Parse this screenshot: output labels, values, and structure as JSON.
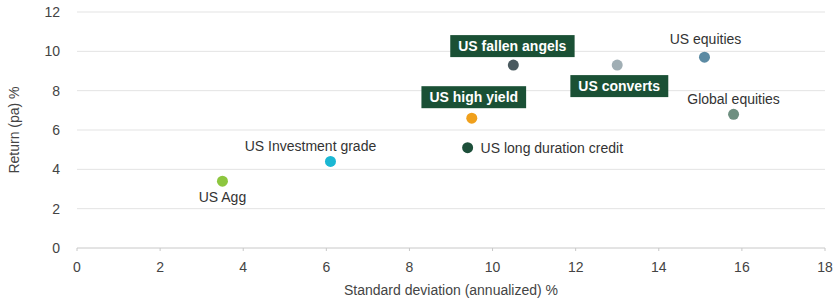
{
  "chart_data": {
    "type": "scatter",
    "x_label": "Standard deviation (annualized) %",
    "y_label": "Return (pa) %",
    "xlim": [
      0,
      18
    ],
    "xticks": [
      0,
      2,
      4,
      6,
      8,
      10,
      12,
      14,
      16,
      18
    ],
    "ylim": [
      0,
      12
    ],
    "yticks": [
      0,
      2,
      4,
      6,
      8,
      10,
      12
    ],
    "grid": true,
    "marker": "circle",
    "series": [
      {
        "name": "US Agg",
        "color": "#8dc63f",
        "x": [
          3.5
        ],
        "values": [
          3.4
        ]
      },
      {
        "name": "US Investment grade",
        "color": "#1ab7d3",
        "x": [
          6.1
        ],
        "values": [
          4.4
        ]
      },
      {
        "name": "US high yield",
        "color": "#f0a01c",
        "x": [
          9.5
        ],
        "values": [
          6.6
        ]
      },
      {
        "name": "US long duration credit",
        "color": "#1d4f3a",
        "x": [
          9.4
        ],
        "values": [
          5.1
        ]
      },
      {
        "name": "US fallen angels",
        "color": "#4a5a5f",
        "x": [
          10.5
        ],
        "values": [
          9.3
        ]
      },
      {
        "name": "US converts",
        "color": "#a0aeb4",
        "x": [
          13.0
        ],
        "values": [
          9.3
        ]
      },
      {
        "name": "US equities",
        "color": "#5b8aa3",
        "x": [
          15.1
        ],
        "values": [
          9.7
        ]
      },
      {
        "name": "Global equities",
        "color": "#6e8f80",
        "x": [
          15.8
        ],
        "values": [
          6.8
        ]
      }
    ]
  }
}
